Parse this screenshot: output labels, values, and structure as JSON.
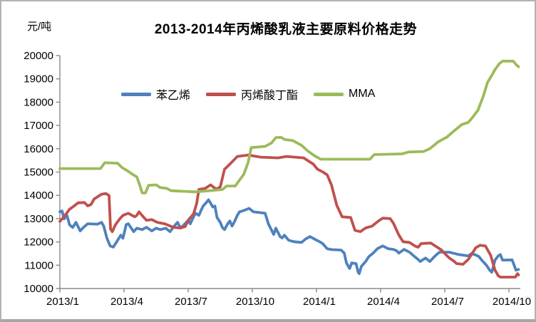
{
  "window": {
    "background": "#ffffff",
    "border_color": "#b3b3b3"
  },
  "chart_data": {
    "type": "line",
    "title": "2013-2014年丙烯酸乳液主要原料价格走势",
    "unit_label": "元/吨",
    "ylim": [
      10000,
      20000
    ],
    "ytick_step": 1000,
    "ytick_labels": [
      "10000",
      "11000",
      "12000",
      "13000",
      "14000",
      "15000",
      "16000",
      "17000",
      "18000",
      "19000",
      "20000"
    ],
    "xtick_labels": [
      "2013/1",
      "2013/4",
      "2013/7",
      "2013/10",
      "2014/1",
      "2014/4",
      "2014/7",
      "2014/10"
    ],
    "xtick_months": [
      0,
      3,
      6,
      9,
      12,
      15,
      18,
      21
    ],
    "x_unit": "months since 2013/1",
    "x_max": 21.5,
    "grid": false,
    "legend_position": "top-inside",
    "axis_color": "#8a8a8a",
    "series": [
      {
        "name": "苯乙烯",
        "color": "#4F81BD",
        "points": [
          [
            0.0,
            13290
          ],
          [
            0.1,
            13330
          ],
          [
            0.2,
            12990
          ],
          [
            0.33,
            13140
          ],
          [
            0.45,
            12740
          ],
          [
            0.6,
            12620
          ],
          [
            0.75,
            12840
          ],
          [
            0.95,
            12470
          ],
          [
            1.1,
            12620
          ],
          [
            1.3,
            12780
          ],
          [
            1.75,
            12760
          ],
          [
            1.95,
            12840
          ],
          [
            2.05,
            12680
          ],
          [
            2.2,
            12160
          ],
          [
            2.35,
            11830
          ],
          [
            2.5,
            11780
          ],
          [
            2.7,
            12070
          ],
          [
            2.85,
            12290
          ],
          [
            2.95,
            12160
          ],
          [
            3.1,
            12740
          ],
          [
            3.2,
            12780
          ],
          [
            3.45,
            12440
          ],
          [
            3.6,
            12590
          ],
          [
            3.85,
            12530
          ],
          [
            4.05,
            12630
          ],
          [
            4.3,
            12470
          ],
          [
            4.5,
            12590
          ],
          [
            4.7,
            12530
          ],
          [
            4.95,
            12590
          ],
          [
            5.15,
            12440
          ],
          [
            5.35,
            12680
          ],
          [
            5.5,
            12840
          ],
          [
            5.65,
            12590
          ],
          [
            5.85,
            12780
          ],
          [
            6.0,
            12930
          ],
          [
            6.1,
            12780
          ],
          [
            6.25,
            13080
          ],
          [
            6.35,
            13230
          ],
          [
            6.5,
            13140
          ],
          [
            6.6,
            13350
          ],
          [
            6.7,
            13540
          ],
          [
            6.85,
            13690
          ],
          [
            6.95,
            13810
          ],
          [
            7.05,
            13660
          ],
          [
            7.15,
            13500
          ],
          [
            7.25,
            13540
          ],
          [
            7.35,
            13050
          ],
          [
            7.5,
            12840
          ],
          [
            7.6,
            12620
          ],
          [
            7.7,
            12530
          ],
          [
            7.85,
            12780
          ],
          [
            7.95,
            12900
          ],
          [
            8.05,
            12680
          ],
          [
            8.15,
            12840
          ],
          [
            8.3,
            13140
          ],
          [
            8.4,
            13290
          ],
          [
            8.6,
            13350
          ],
          [
            8.85,
            13440
          ],
          [
            9.05,
            13290
          ],
          [
            9.35,
            13260
          ],
          [
            9.6,
            13230
          ],
          [
            9.75,
            12780
          ],
          [
            10.0,
            12320
          ],
          [
            10.1,
            12590
          ],
          [
            10.3,
            12230
          ],
          [
            10.4,
            12170
          ],
          [
            10.5,
            12290
          ],
          [
            10.7,
            12070
          ],
          [
            10.95,
            12010
          ],
          [
            11.3,
            11980
          ],
          [
            11.5,
            12130
          ],
          [
            11.7,
            12230
          ],
          [
            11.95,
            12100
          ],
          [
            12.15,
            12010
          ],
          [
            12.3,
            11920
          ],
          [
            12.5,
            11710
          ],
          [
            12.7,
            11670
          ],
          [
            13.15,
            11650
          ],
          [
            13.3,
            11520
          ],
          [
            13.4,
            11100
          ],
          [
            13.55,
            10860
          ],
          [
            13.65,
            11100
          ],
          [
            13.85,
            11070
          ],
          [
            13.95,
            10700
          ],
          [
            14.0,
            10640
          ],
          [
            14.1,
            10950
          ],
          [
            14.3,
            11160
          ],
          [
            14.45,
            11370
          ],
          [
            14.65,
            11520
          ],
          [
            14.85,
            11710
          ],
          [
            15.1,
            11830
          ],
          [
            15.35,
            11710
          ],
          [
            15.6,
            11680
          ],
          [
            15.75,
            11620
          ],
          [
            15.85,
            11520
          ],
          [
            16.1,
            11680
          ],
          [
            16.35,
            11560
          ],
          [
            16.55,
            11400
          ],
          [
            16.75,
            11250
          ],
          [
            16.85,
            11160
          ],
          [
            17.1,
            11310
          ],
          [
            17.3,
            11160
          ],
          [
            17.55,
            11400
          ],
          [
            17.75,
            11560
          ],
          [
            18.2,
            11560
          ],
          [
            18.65,
            11460
          ],
          [
            19.1,
            11400
          ],
          [
            19.25,
            11500
          ],
          [
            19.45,
            11440
          ],
          [
            19.6,
            11370
          ],
          [
            19.7,
            11250
          ],
          [
            19.95,
            11000
          ],
          [
            20.1,
            10790
          ],
          [
            20.2,
            10700
          ],
          [
            20.35,
            11220
          ],
          [
            20.5,
            11400
          ],
          [
            20.6,
            11460
          ],
          [
            20.7,
            11220
          ],
          [
            21.15,
            11230
          ],
          [
            21.33,
            10790
          ],
          [
            21.45,
            10820
          ]
        ]
      },
      {
        "name": "丙烯酸丁酯",
        "color": "#C0504D",
        "points": [
          [
            0.0,
            12880
          ],
          [
            0.25,
            13150
          ],
          [
            0.45,
            13400
          ],
          [
            0.6,
            13500
          ],
          [
            0.85,
            13680
          ],
          [
            1.15,
            13690
          ],
          [
            1.3,
            13550
          ],
          [
            1.45,
            13600
          ],
          [
            1.6,
            13840
          ],
          [
            1.8,
            13960
          ],
          [
            1.95,
            14050
          ],
          [
            2.15,
            14080
          ],
          [
            2.3,
            13990
          ],
          [
            2.37,
            12550
          ],
          [
            2.45,
            12440
          ],
          [
            2.6,
            12740
          ],
          [
            2.8,
            12990
          ],
          [
            2.95,
            13140
          ],
          [
            3.2,
            13230
          ],
          [
            3.5,
            13080
          ],
          [
            3.6,
            13140
          ],
          [
            3.7,
            13290
          ],
          [
            3.9,
            13080
          ],
          [
            4.05,
            12930
          ],
          [
            4.3,
            12960
          ],
          [
            4.55,
            12840
          ],
          [
            4.9,
            12780
          ],
          [
            5.3,
            12630
          ],
          [
            5.6,
            12600
          ],
          [
            5.85,
            12650
          ],
          [
            6.05,
            12990
          ],
          [
            6.25,
            13200
          ],
          [
            6.4,
            13660
          ],
          [
            6.5,
            14250
          ],
          [
            6.8,
            14300
          ],
          [
            7.05,
            14450
          ],
          [
            7.3,
            14270
          ],
          [
            7.5,
            14360
          ],
          [
            7.7,
            15120
          ],
          [
            7.95,
            15340
          ],
          [
            8.3,
            15670
          ],
          [
            8.8,
            15730
          ],
          [
            9.4,
            15640
          ],
          [
            10.2,
            15610
          ],
          [
            10.6,
            15670
          ],
          [
            11.4,
            15610
          ],
          [
            11.6,
            15490
          ],
          [
            11.85,
            15340
          ],
          [
            12.05,
            15120
          ],
          [
            12.3,
            15000
          ],
          [
            12.5,
            14880
          ],
          [
            12.7,
            14450
          ],
          [
            12.95,
            13570
          ],
          [
            13.2,
            13080
          ],
          [
            13.6,
            13050
          ],
          [
            13.8,
            12500
          ],
          [
            14.05,
            12440
          ],
          [
            14.3,
            12600
          ],
          [
            14.6,
            12680
          ],
          [
            14.9,
            12900
          ],
          [
            15.1,
            13020
          ],
          [
            15.45,
            13000
          ],
          [
            15.6,
            12800
          ],
          [
            15.85,
            12300
          ],
          [
            16.05,
            12010
          ],
          [
            16.35,
            11980
          ],
          [
            16.6,
            11830
          ],
          [
            16.75,
            11770
          ],
          [
            16.9,
            11930
          ],
          [
            17.35,
            11950
          ],
          [
            17.5,
            11860
          ],
          [
            17.65,
            11770
          ],
          [
            17.85,
            11650
          ],
          [
            18.0,
            11500
          ],
          [
            18.2,
            11320
          ],
          [
            18.45,
            11160
          ],
          [
            18.55,
            11070
          ],
          [
            18.85,
            11040
          ],
          [
            19.1,
            11250
          ],
          [
            19.25,
            11460
          ],
          [
            19.45,
            11750
          ],
          [
            19.65,
            11860
          ],
          [
            19.9,
            11830
          ],
          [
            20.15,
            11420
          ],
          [
            20.25,
            11100
          ],
          [
            20.35,
            10790
          ],
          [
            20.5,
            10550
          ],
          [
            20.6,
            10490
          ],
          [
            21.3,
            10490
          ],
          [
            21.4,
            10640
          ],
          [
            21.45,
            10580
          ]
        ]
      },
      {
        "name": "MMA",
        "color": "#9BBB59",
        "points": [
          [
            0.0,
            15150
          ],
          [
            1.9,
            15150
          ],
          [
            2.1,
            15400
          ],
          [
            2.7,
            15380
          ],
          [
            2.9,
            15200
          ],
          [
            3.2,
            15030
          ],
          [
            3.4,
            14900
          ],
          [
            3.6,
            14790
          ],
          [
            3.75,
            14400
          ],
          [
            3.85,
            14100
          ],
          [
            4.0,
            14100
          ],
          [
            4.15,
            14430
          ],
          [
            4.5,
            14450
          ],
          [
            4.7,
            14330
          ],
          [
            5.0,
            14300
          ],
          [
            5.2,
            14200
          ],
          [
            5.6,
            14180
          ],
          [
            6.3,
            14150
          ],
          [
            7.0,
            14200
          ],
          [
            7.6,
            14250
          ],
          [
            7.8,
            14400
          ],
          [
            8.2,
            14400
          ],
          [
            8.4,
            14650
          ],
          [
            8.6,
            14900
          ],
          [
            8.8,
            15400
          ],
          [
            8.95,
            16050
          ],
          [
            9.6,
            16100
          ],
          [
            9.9,
            16250
          ],
          [
            10.1,
            16480
          ],
          [
            10.35,
            16490
          ],
          [
            10.5,
            16400
          ],
          [
            10.9,
            16350
          ],
          [
            11.3,
            16150
          ],
          [
            11.6,
            15900
          ],
          [
            11.9,
            15700
          ],
          [
            12.2,
            15550
          ],
          [
            14.5,
            15550
          ],
          [
            14.7,
            15750
          ],
          [
            16.0,
            15780
          ],
          [
            16.3,
            15860
          ],
          [
            17.0,
            15880
          ],
          [
            17.3,
            16000
          ],
          [
            17.7,
            16300
          ],
          [
            18.1,
            16500
          ],
          [
            18.4,
            16740
          ],
          [
            18.8,
            17040
          ],
          [
            19.1,
            17130
          ],
          [
            19.3,
            17350
          ],
          [
            19.55,
            17650
          ],
          [
            19.8,
            18250
          ],
          [
            20.0,
            18850
          ],
          [
            20.2,
            19150
          ],
          [
            20.35,
            19400
          ],
          [
            20.55,
            19650
          ],
          [
            20.7,
            19760
          ],
          [
            21.2,
            19760
          ],
          [
            21.35,
            19600
          ],
          [
            21.45,
            19520
          ]
        ]
      }
    ]
  }
}
